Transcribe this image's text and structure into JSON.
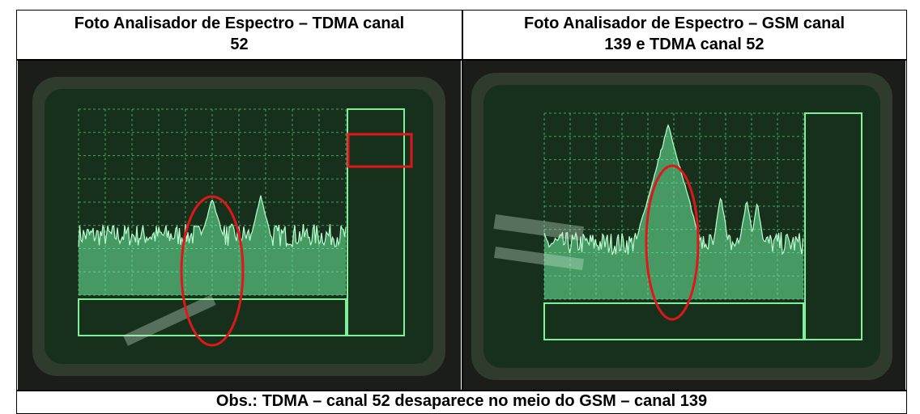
{
  "table": {
    "header": [
      {
        "lines": [
          "Foto Analisador de Espectro –  TDMA canal",
          "52"
        ]
      },
      {
        "lines": [
          "Foto Analisador de Espectro – GSM canal",
          "139 e TDMA canal 52"
        ]
      }
    ],
    "footer": "Obs.: TDMA – canal 52 desaparece no meio do GSM – canal 139"
  }
}
